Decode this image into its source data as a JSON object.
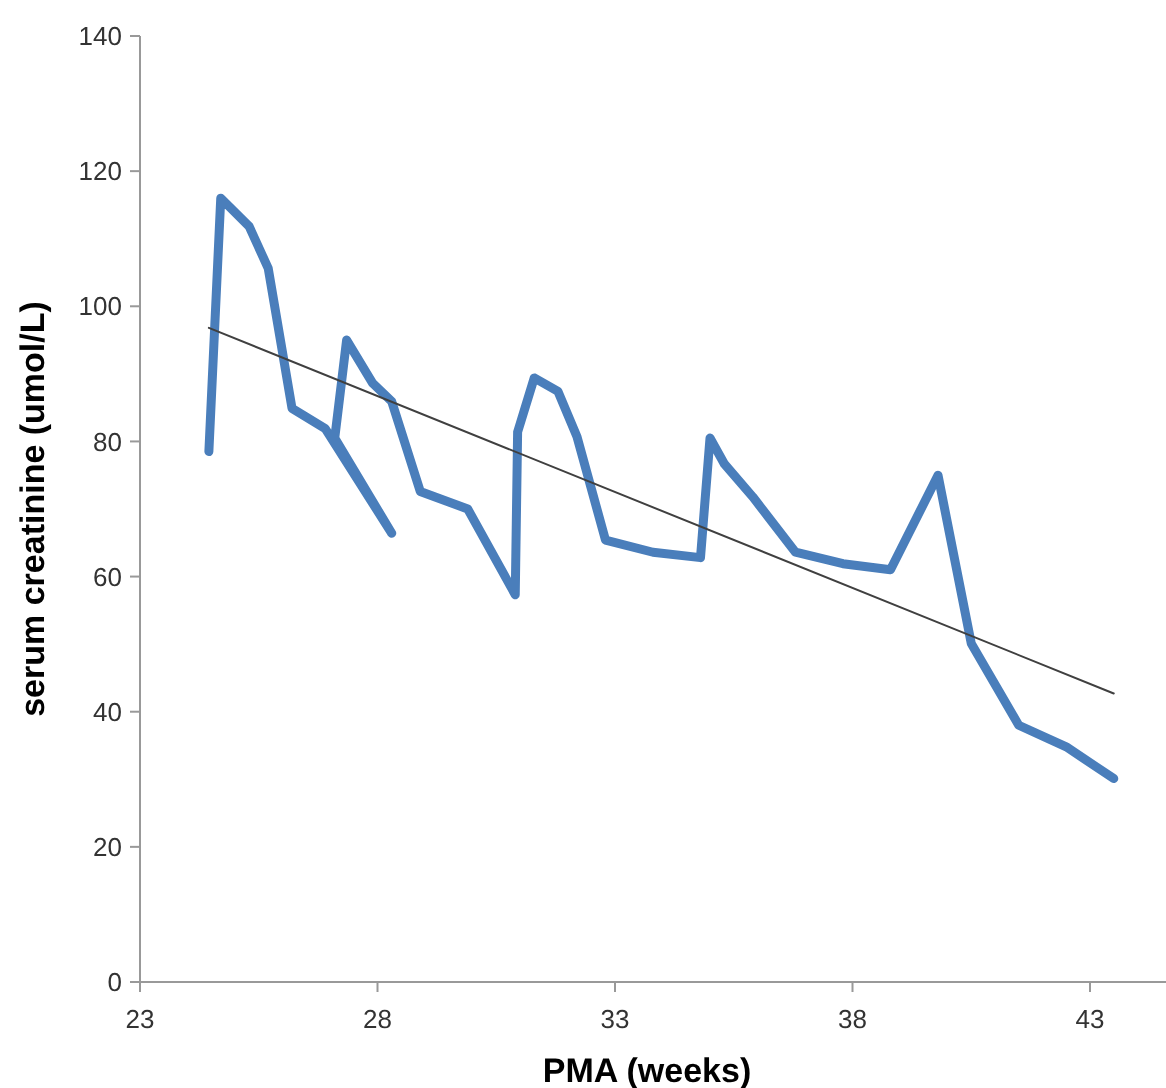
{
  "chart_data": {
    "type": "line",
    "xlabel": "PMA (weeks)",
    "ylabel": "serum creatinine (umol/L)",
    "xlim": [
      23,
      44.6
    ],
    "xticks": [
      23,
      28,
      33,
      38,
      43
    ],
    "ylim": [
      0,
      140
    ],
    "yticks": [
      0,
      20,
      40,
      60,
      80,
      100,
      120,
      140
    ],
    "marker": "none",
    "series": [
      {
        "color": "#4a7ebb",
        "x": [
          24.45,
          24.7,
          25.3,
          25.7,
          26.2,
          26.9,
          28.3,
          27.1,
          27.35,
          27.9,
          28.3,
          28.9,
          29.9,
          30.9,
          30.95,
          31.3,
          31.8,
          32.2,
          32.8,
          33.8,
          34.8,
          35.0,
          35.3,
          35.9,
          36.8,
          37.8,
          38.8,
          39.8,
          40.5,
          41.5,
          42.5,
          43.5
        ],
        "values": [
          78.5,
          116,
          111.8,
          105.6,
          84.9,
          81.9,
          66.4,
          80.5,
          95,
          88.6,
          85.9,
          72.6,
          70,
          57.3,
          81.4,
          89.4,
          87.4,
          80.7,
          65.4,
          63.6,
          62.8,
          80.5,
          76.7,
          71.8,
          63.6,
          61.9,
          61,
          75,
          50.1,
          38,
          34.8,
          30.1
        ]
      },
      {
        "type": "line",
        "color": "#404040",
        "x": [
          24.45,
          43.5
        ],
        "values": [
          96.8,
          42.7
        ]
      }
    ]
  }
}
